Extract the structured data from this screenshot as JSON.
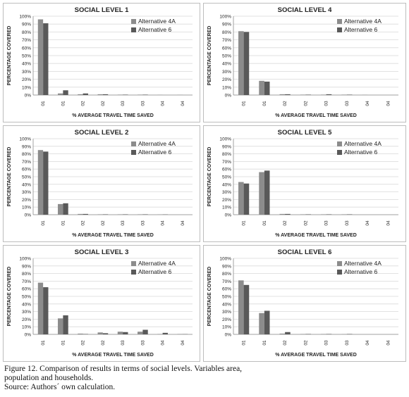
{
  "colors": {
    "alt4a": "#8c8c8c",
    "alt6": "#595959",
    "grid": "#d9d9d9",
    "axis": "#8c8c8c",
    "text": "#222222"
  },
  "chart_data": [
    {
      "type": "bar",
      "title": "SOCIAL LEVEL 1",
      "xlabel": "% AVERAGE TRAVEL TIME SAVED",
      "ylabel": "PERCENTAGE COVERED",
      "categories": [
        "01",
        "01",
        "02",
        "02",
        "03",
        "03",
        "04",
        "04"
      ],
      "ylim": [
        0,
        100
      ],
      "yticks": [
        "0%",
        "10%",
        "20%",
        "30%",
        "40%",
        "50%",
        "60%",
        "70%",
        "80%",
        "90%",
        "100%"
      ],
      "grid": true,
      "legend_position": "top-right",
      "series": [
        {
          "name": "Alternative 4A",
          "values": [
            96,
            2,
            1,
            1,
            0.5,
            0.5,
            0.3,
            0.3
          ]
        },
        {
          "name": "Alternative 6",
          "values": [
            91,
            6,
            2,
            1,
            0.5,
            0.5,
            0,
            0
          ]
        }
      ]
    },
    {
      "type": "bar",
      "title": "SOCIAL LEVEL 4",
      "xlabel": "% AVERAGE TRAVEL TIME SAVED",
      "ylabel": "PERCENTAGE COVERED",
      "categories": [
        "01",
        "01",
        "02",
        "02",
        "03",
        "03",
        "04",
        "04"
      ],
      "ylim": [
        0,
        100
      ],
      "yticks": [
        "0%",
        "10%",
        "20%",
        "30%",
        "40%",
        "50%",
        "60%",
        "70%",
        "80%",
        "90%",
        "100%"
      ],
      "grid": true,
      "legend_position": "top-right",
      "series": [
        {
          "name": "Alternative 4A",
          "values": [
            81,
            18,
            1,
            0.5,
            0.5,
            0.5,
            0.3,
            0
          ]
        },
        {
          "name": "Alternative 6",
          "values": [
            80,
            17,
            1,
            0.5,
            1,
            0.5,
            0,
            0
          ]
        }
      ]
    },
    {
      "type": "bar",
      "title": "SOCIAL LEVEL  2",
      "xlabel": "% AVERAGE TRAVEL TIME SAVED",
      "ylabel": "PERCENTAGE COVERED",
      "categories": [
        "01",
        "01",
        "02",
        "02",
        "03",
        "03",
        "04",
        "04"
      ],
      "ylim": [
        0,
        100
      ],
      "yticks": [
        "0%",
        "10%",
        "20%",
        "30%",
        "40%",
        "50%",
        "60%",
        "70%",
        "80%",
        "90%",
        "100%"
      ],
      "grid": true,
      "legend_position": "top-right",
      "series": [
        {
          "name": "Alternative 4A",
          "values": [
            85,
            14,
            1,
            0.5,
            0.5,
            0.5,
            0.3,
            0
          ]
        },
        {
          "name": "Alternative 6",
          "values": [
            83,
            15,
            1,
            0.5,
            0.5,
            0.5,
            0.3,
            0
          ]
        }
      ]
    },
    {
      "type": "bar",
      "title": "SOCIAL LEVEL 5",
      "xlabel": "% AVERAGE TRAVEL TIME SAVED",
      "ylabel": "PERCENTAGE COVERED",
      "categories": [
        "01",
        "01",
        "02",
        "02",
        "03",
        "03",
        "04",
        "04"
      ],
      "ylim": [
        0,
        100
      ],
      "yticks": [
        "0%",
        "10%",
        "20%",
        "30%",
        "40%",
        "50%",
        "60%",
        "70%",
        "80%",
        "90%",
        "100%"
      ],
      "grid": true,
      "legend_position": "top-right",
      "series": [
        {
          "name": "Alternative 4A",
          "values": [
            43,
            56,
            1,
            0.5,
            0.5,
            0.5,
            0,
            0
          ]
        },
        {
          "name": "Alternative 6",
          "values": [
            41,
            58,
            1,
            0.5,
            0.5,
            0.5,
            0,
            0
          ]
        }
      ]
    },
    {
      "type": "bar",
      "title": "SOCIAL LEVEL 3",
      "xlabel": "% AVERAGE TRAVEL TIME SAVED",
      "ylabel": "PERCENTAGE COVERED",
      "categories": [
        "01",
        "01",
        "02",
        "02",
        "03",
        "03",
        "04",
        "04"
      ],
      "ylim": [
        0,
        100
      ],
      "yticks": [
        "0%",
        "10%",
        "20%",
        "30%",
        "40%",
        "50%",
        "60%",
        "70%",
        "80%",
        "90%",
        "100%"
      ],
      "grid": true,
      "legend_position": "top-right",
      "series": [
        {
          "name": "Alternative 4A",
          "values": [
            68,
            21,
            1,
            2.5,
            3.5,
            3.5,
            0.5,
            0.5
          ]
        },
        {
          "name": "Alternative 6",
          "values": [
            62,
            25,
            0.5,
            1.5,
            3,
            6,
            2,
            0.3
          ]
        }
      ]
    },
    {
      "type": "bar",
      "title": "SOCIAL LEVEL 6",
      "xlabel": "% AVERAGE TRAVEL TIME SAVED",
      "ylabel": "PERCENTAGE COVERED",
      "categories": [
        "01",
        "01",
        "02",
        "02",
        "03",
        "03",
        "04",
        "04"
      ],
      "ylim": [
        0,
        100
      ],
      "yticks": [
        "0%",
        "10%",
        "20%",
        "30%",
        "40%",
        "50%",
        "60%",
        "70%",
        "80%",
        "90%",
        "100%"
      ],
      "grid": true,
      "legend_position": "top-right",
      "series": [
        {
          "name": "Alternative 4A",
          "values": [
            71,
            28,
            1,
            0.5,
            0.5,
            0.3,
            0,
            0
          ]
        },
        {
          "name": "Alternative 6",
          "values": [
            65,
            31,
            3,
            0.5,
            0.5,
            0.5,
            0,
            0
          ]
        }
      ]
    }
  ],
  "caption": {
    "line1": "Figure 12. Comparison of results in terms of social levels. Variables area,",
    "line2": "population and households.",
    "line3": "Source: Authors´ own calculation."
  }
}
